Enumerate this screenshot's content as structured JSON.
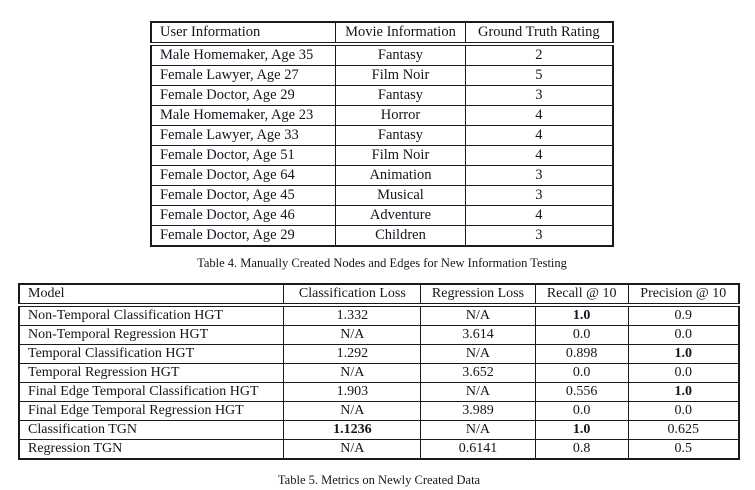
{
  "page": {
    "background": "#ffffff",
    "text_color": "#15151f",
    "rule_color": "#1a1a1a"
  },
  "table4": {
    "caption": "Table 4. Manually Created Nodes and Edges for New Information Testing",
    "columns": [
      "User Information",
      "Movie Information",
      "Ground Truth Rating"
    ],
    "rows": [
      {
        "cells": [
          "Male Homemaker, Age 35",
          "Fantasy",
          "2"
        ],
        "bold": []
      },
      {
        "cells": [
          "Female Lawyer, Age 27",
          "Film Noir",
          "5"
        ],
        "bold": []
      },
      {
        "cells": [
          "Female Doctor, Age 29",
          "Fantasy",
          "3"
        ],
        "bold": []
      },
      {
        "cells": [
          "Male Homemaker, Age 23",
          "Horror",
          "4"
        ],
        "bold": []
      },
      {
        "cells": [
          "Female Lawyer, Age 33",
          "Fantasy",
          "4"
        ],
        "bold": []
      },
      {
        "cells": [
          "Female Doctor, Age 51",
          "Film Noir",
          "4"
        ],
        "bold": []
      },
      {
        "cells": [
          "Female Doctor, Age 64",
          "Animation",
          "3"
        ],
        "bold": []
      },
      {
        "cells": [
          "Female Doctor, Age 45",
          "Musical",
          "3"
        ],
        "bold": []
      },
      {
        "cells": [
          "Female Doctor, Age 46",
          "Adventure",
          "4"
        ],
        "bold": []
      },
      {
        "cells": [
          "Female Doctor, Age 29",
          "Children",
          "3"
        ],
        "bold": []
      }
    ]
  },
  "table5": {
    "caption": "Table 5. Metrics on Newly Created Data",
    "columns": [
      "Model",
      "Classification Loss",
      "Regression Loss",
      "Recall @ 10",
      "Precision @ 10"
    ],
    "rows": [
      {
        "cells": [
          "Non-Temporal Classification HGT",
          "1.332",
          "N/A",
          "1.0",
          "0.9"
        ],
        "bold": [
          3
        ]
      },
      {
        "cells": [
          "Non-Temporal Regression HGT",
          "N/A",
          "3.614",
          "0.0",
          "0.0"
        ],
        "bold": []
      },
      {
        "cells": [
          "Temporal Classification HGT",
          "1.292",
          "N/A",
          "0.898",
          "1.0"
        ],
        "bold": [
          4
        ]
      },
      {
        "cells": [
          "Temporal Regression HGT",
          "N/A",
          "3.652",
          "0.0",
          "0.0"
        ],
        "bold": []
      },
      {
        "cells": [
          "Final Edge Temporal Classification HGT",
          "1.903",
          "N/A",
          "0.556",
          "1.0"
        ],
        "bold": [
          4
        ]
      },
      {
        "cells": [
          "Final Edge Temporal Regression HGT",
          "N/A",
          "3.989",
          "0.0",
          "0.0"
        ],
        "bold": []
      },
      {
        "cells": [
          "Classification TGN",
          "1.1236",
          "N/A",
          "1.0",
          "0.625"
        ],
        "bold": [
          1,
          3
        ]
      },
      {
        "cells": [
          "Regression TGN",
          "N/A",
          "0.6141",
          "0.8",
          "0.5"
        ],
        "bold": []
      }
    ]
  },
  "chart_data": [
    {
      "type": "table",
      "title": "Table 4. Manually Created Nodes and Edges for New Information Testing",
      "columns": [
        "User Information",
        "Movie Information",
        "Ground Truth Rating"
      ],
      "rows": [
        [
          "Male Homemaker, Age 35",
          "Fantasy",
          2
        ],
        [
          "Female Lawyer, Age 27",
          "Film Noir",
          5
        ],
        [
          "Female Doctor, Age 29",
          "Fantasy",
          3
        ],
        [
          "Male Homemaker, Age 23",
          "Horror",
          4
        ],
        [
          "Female Lawyer, Age 33",
          "Fantasy",
          4
        ],
        [
          "Female Doctor, Age 51",
          "Film Noir",
          4
        ],
        [
          "Female Doctor, Age 64",
          "Animation",
          3
        ],
        [
          "Female Doctor, Age 45",
          "Musical",
          3
        ],
        [
          "Female Doctor, Age 46",
          "Adventure",
          4
        ],
        [
          "Female Doctor, Age 29",
          "Children",
          3
        ]
      ]
    },
    {
      "type": "table",
      "title": "Table 5. Metrics on Newly Created Data",
      "columns": [
        "Model",
        "Classification Loss",
        "Regression Loss",
        "Recall @ 10",
        "Precision @ 10"
      ],
      "rows": [
        [
          "Non-Temporal Classification HGT",
          1.332,
          null,
          1.0,
          0.9
        ],
        [
          "Non-Temporal Regression HGT",
          null,
          3.614,
          0.0,
          0.0
        ],
        [
          "Temporal Classification HGT",
          1.292,
          null,
          0.898,
          1.0
        ],
        [
          "Temporal Regression HGT",
          null,
          3.652,
          0.0,
          0.0
        ],
        [
          "Final Edge Temporal Classification HGT",
          1.903,
          null,
          0.556,
          1.0
        ],
        [
          "Final Edge Temporal Regression HGT",
          null,
          3.989,
          0.0,
          0.0
        ],
        [
          "Classification TGN",
          1.1236,
          null,
          1.0,
          0.625
        ],
        [
          "Regression TGN",
          null,
          0.6141,
          0.8,
          0.5
        ]
      ]
    }
  ]
}
